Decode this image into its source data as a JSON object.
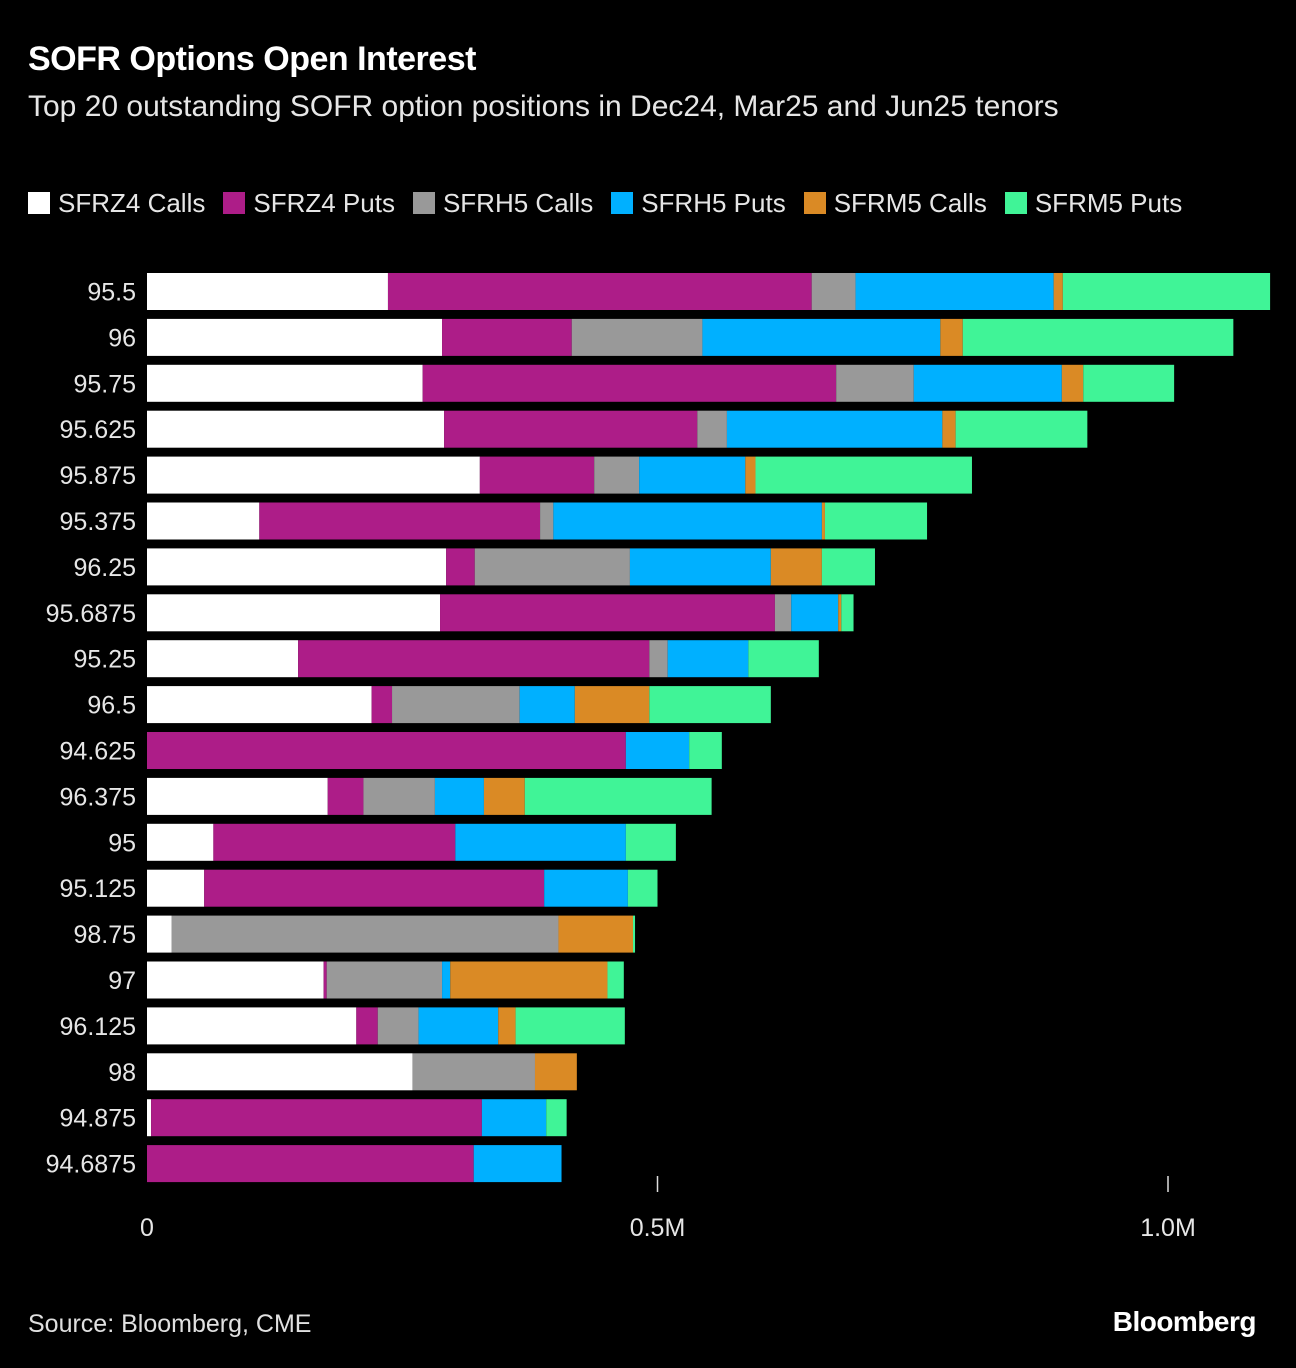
{
  "chart_data": {
    "type": "bar",
    "orientation": "horizontal",
    "stacked": true,
    "title": "SOFR Options Open Interest",
    "subtitle": "Top 20 outstanding SOFR option positions in Dec24, Mar25 and Jun25 tenors",
    "categories": [
      "95.5",
      "96",
      "95.75",
      "95.625",
      "95.875",
      "95.375",
      "96.25",
      "95.6875",
      "95.25",
      "96.5",
      "94.625",
      "96.375",
      "95",
      "95.125",
      "98.75",
      "97",
      "96.125",
      "98",
      "94.875",
      "94.6875"
    ],
    "series": [
      {
        "name": "SFRZ4 Calls",
        "color": "#ffffff",
        "values": [
          236000,
          289000,
          270000,
          291000,
          326000,
          110000,
          293000,
          287000,
          148000,
          220000,
          0,
          177000,
          65000,
          56000,
          24000,
          173000,
          205000,
          260000,
          4000,
          0
        ]
      },
      {
        "name": "SFRZ4 Puts",
        "color": "#ad1d88",
        "values": [
          415000,
          127000,
          405000,
          248000,
          112000,
          275000,
          28000,
          328000,
          344000,
          20000,
          469000,
          35000,
          237000,
          333000,
          0,
          3000,
          21000,
          0,
          324000,
          320000
        ]
      },
      {
        "name": "SFRH5 Calls",
        "color": "#999999",
        "values": [
          43000,
          128000,
          76000,
          29000,
          44000,
          13000,
          152000,
          16000,
          18000,
          125000,
          0,
          70000,
          0,
          0,
          379000,
          113000,
          40000,
          120000,
          0,
          0
        ]
      },
      {
        "name": "SFRH5 Puts",
        "color": "#00b0ff",
        "values": [
          194000,
          233000,
          145000,
          211000,
          104000,
          263000,
          138000,
          46000,
          79000,
          54000,
          62000,
          48000,
          167000,
          82000,
          0,
          8000,
          78000,
          0,
          63000,
          86000
        ]
      },
      {
        "name": "SFRM5 Calls",
        "color": "#da8a25",
        "values": [
          9000,
          22000,
          21000,
          13000,
          10000,
          3000,
          50000,
          3000,
          0,
          73000,
          0,
          40000,
          0,
          0,
          73000,
          154000,
          17000,
          41000,
          0,
          0
        ]
      },
      {
        "name": "SFRM5 Puts",
        "color": "#40f497",
        "values": [
          203000,
          265000,
          89000,
          129000,
          212000,
          100000,
          52000,
          12000,
          69000,
          119000,
          32000,
          183000,
          49000,
          29000,
          2000,
          16000,
          107000,
          0,
          20000,
          0
        ]
      }
    ],
    "xlim": [
      0,
      1100000
    ],
    "xticks": [
      0,
      500000,
      1000000
    ],
    "xtick_labels": [
      "0",
      "0.5M",
      "1.0M"
    ],
    "xlabel": "",
    "ylabel": "",
    "grid": false,
    "legend_position": "top-left"
  },
  "footer": {
    "source": "Source: Bloomberg, CME",
    "brand": "Bloomberg"
  }
}
